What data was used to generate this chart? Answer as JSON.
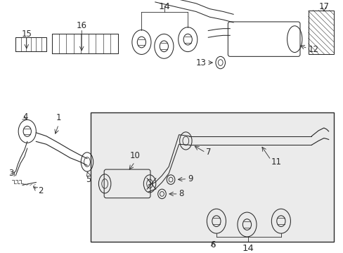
{
  "bg_color": "#ffffff",
  "box_bg": "#ebebeb",
  "line_color": "#2a2a2a",
  "label_fontsize": 8.5,
  "figsize": [
    4.89,
    3.6
  ],
  "dpi": 100
}
